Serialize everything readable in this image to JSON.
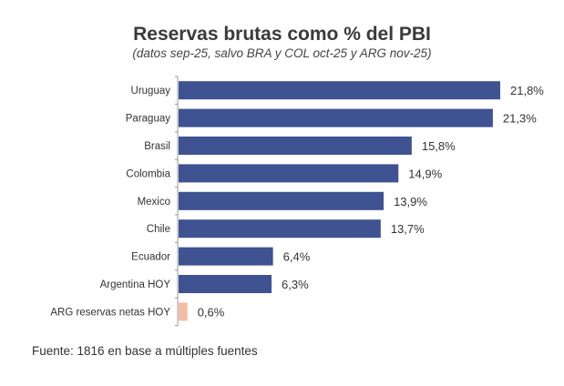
{
  "chart_data": {
    "type": "bar",
    "orientation": "horizontal",
    "title": "Reservas brutas como % del PBI",
    "subtitle": "(datos sep-25, salvo BRA y COL oct-25 y ARG nov-25)",
    "categories": [
      "Uruguay",
      "Paraguay",
      "Brasil",
      "Colombia",
      "Mexico",
      "Chile",
      "Ecuador",
      "Argentina HOY",
      "ARG reservas netas HOY"
    ],
    "values": [
      21.8,
      21.3,
      15.8,
      14.9,
      13.9,
      13.7,
      6.4,
      6.3,
      0.6
    ],
    "labels": [
      "21,8%",
      "21,3%",
      "15,8%",
      "14,9%",
      "13,9%",
      "13,7%",
      "6,4%",
      "6,3%",
      "0,6%"
    ],
    "colors": [
      "#3f5292",
      "#3f5292",
      "#3f5292",
      "#3f5292",
      "#3f5292",
      "#3f5292",
      "#3f5292",
      "#3f5292",
      "#f4bca3"
    ],
    "xlim": [
      0,
      22
    ],
    "grid": false,
    "legend": "none",
    "xlabel": "",
    "ylabel": ""
  },
  "source": "Fuente: 1816 en base a múltiples fuentes"
}
